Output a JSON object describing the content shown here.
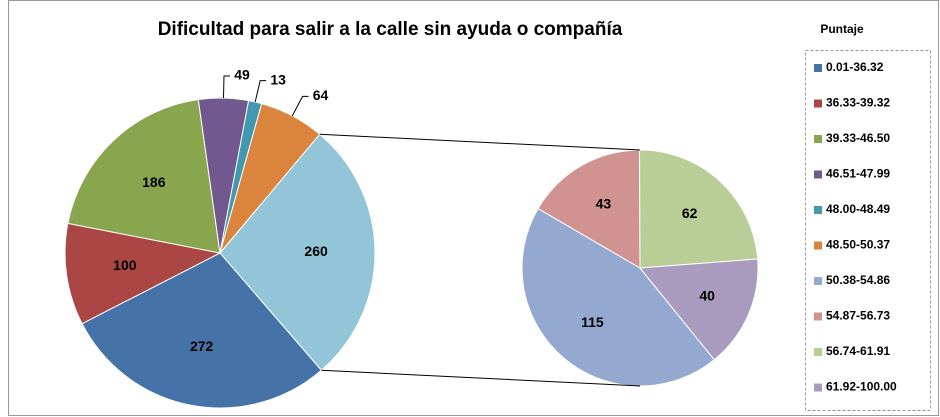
{
  "chart_data": {
    "type": "pie_of_pie",
    "title": "Dificultad para salir a la calle sin ayuda o compañía",
    "legend_title": "Puntaje",
    "categories": [
      "0.01-36.32",
      "36.33-39.32",
      "39.33-46.50",
      "46.51-47.99",
      "48.00-48.49",
      "48.50-50.37",
      "50.38-54.86",
      "54.87-56.73",
      "56.74-61.91",
      "61.92-100.00"
    ],
    "values": [
      272,
      100,
      186,
      49,
      13,
      64,
      115,
      43,
      62,
      40
    ],
    "colors": [
      "#4572a7",
      "#aa4643",
      "#89a54e",
      "#71588f",
      "#4198af",
      "#db843d",
      "#93a9cf",
      "#d19392",
      "#b9cd96",
      "#a99bbd"
    ],
    "secondary_count": 4,
    "other_value": 260,
    "other_color": "#93c5d8",
    "legend_position": "right"
  }
}
